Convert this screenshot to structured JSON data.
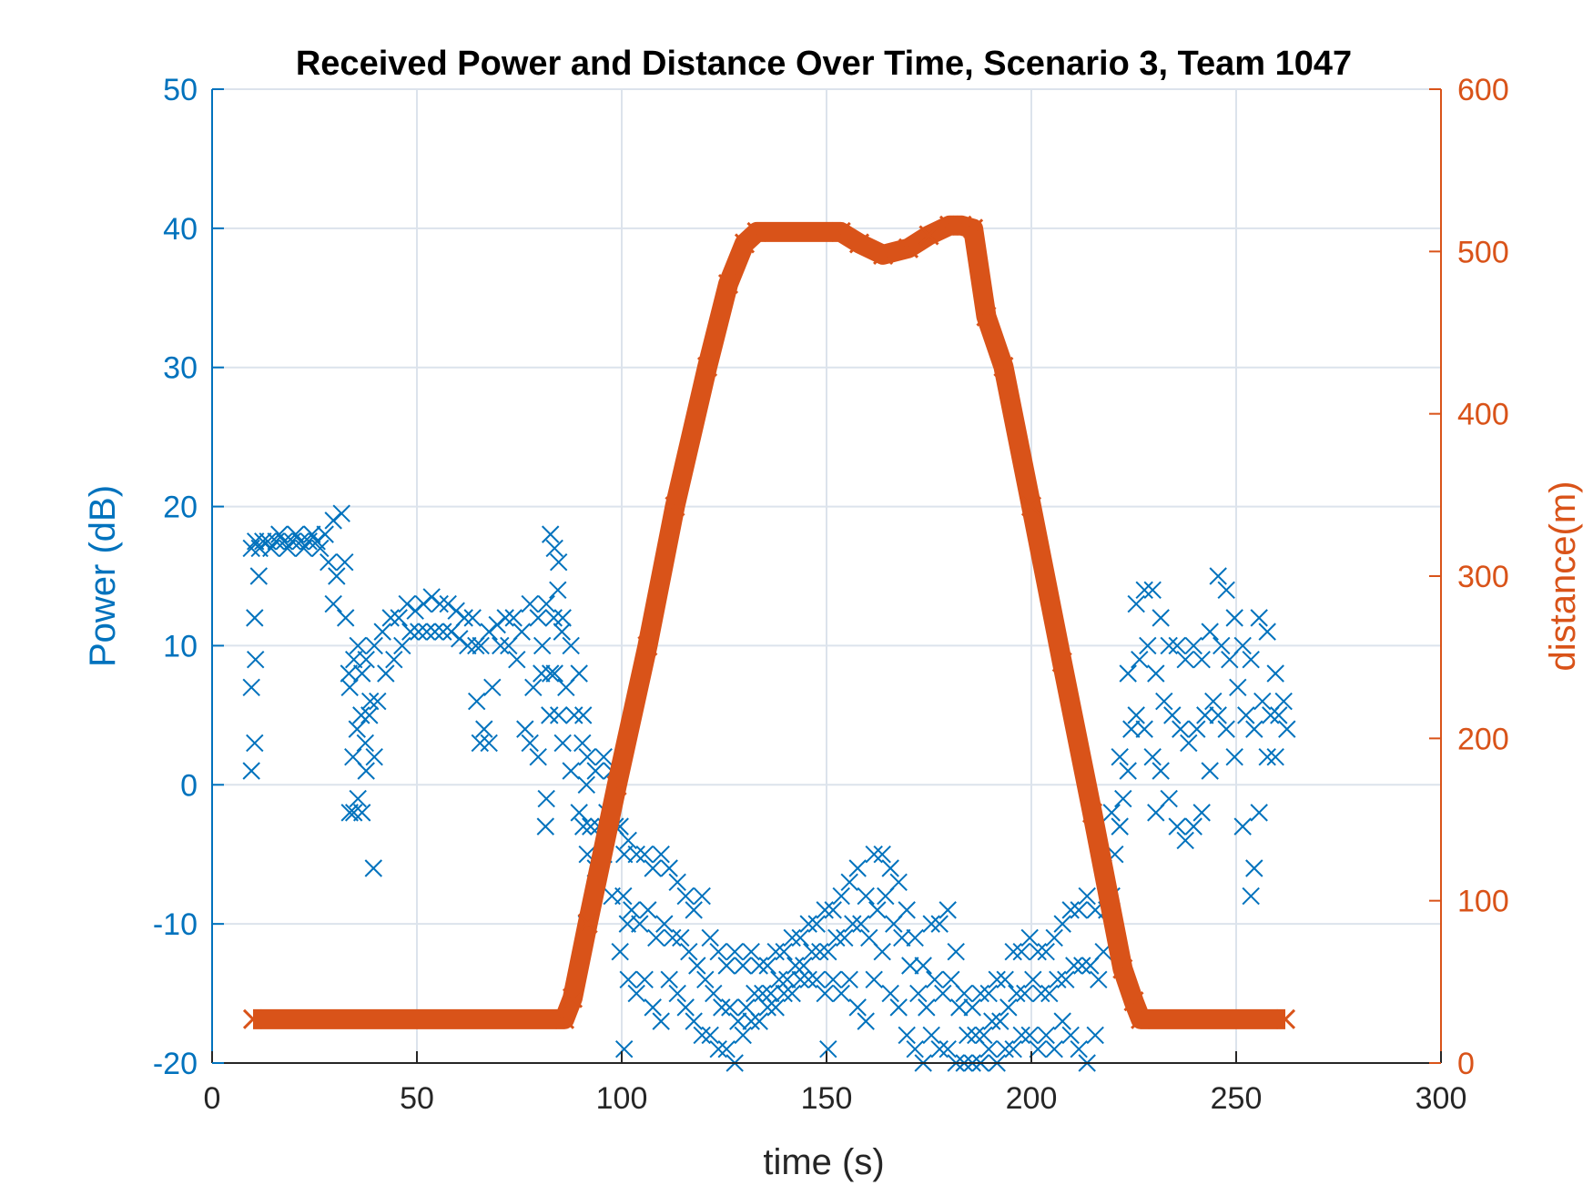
{
  "chart_data": {
    "type": "scatter",
    "title": "Received Power and Distance Over Time, Scenario 3, Team 1047",
    "xlabel": "time (s)",
    "ylabel_left": "Power (dB)",
    "ylabel_right": "distance(m)",
    "xlim": [
      0,
      300
    ],
    "ylim_left": [
      -20,
      50
    ],
    "ylim_right": [
      0,
      600
    ],
    "xticks": [
      "0",
      "50",
      "100",
      "150",
      "200",
      "250",
      "300"
    ],
    "yticks_left": [
      "-20",
      "-10",
      "0",
      "10",
      "20",
      "30",
      "40",
      "50"
    ],
    "yticks_right": [
      "0",
      "100",
      "200",
      "300",
      "400",
      "500",
      "600"
    ],
    "grid": true,
    "marker": "x",
    "colors": {
      "power": "#0072BD",
      "distance": "#D95319",
      "axis": "#262626",
      "grid": "#DCE3EC"
    },
    "series": [
      {
        "axis": "left",
        "points_by_time": [
          [
            10,
            1,
            3,
            7,
            12,
            17
          ],
          [
            11,
            9,
            15,
            17.5
          ],
          [
            12,
            17,
            17.5
          ],
          [
            14,
            17.5,
            17
          ],
          [
            16,
            17.5,
            18
          ],
          [
            18,
            17.5,
            17
          ],
          [
            20,
            17.5,
            18
          ],
          [
            22,
            17.5,
            17
          ],
          [
            24,
            17.5,
            18
          ],
          [
            26,
            17.5,
            17
          ],
          [
            28,
            18,
            16
          ],
          [
            30,
            19,
            15,
            13
          ],
          [
            32,
            19.5,
            16
          ],
          [
            33,
            12,
            8
          ],
          [
            34,
            7,
            2,
            -2
          ],
          [
            35,
            9,
            4,
            -2
          ],
          [
            36,
            10,
            5,
            -1
          ],
          [
            37,
            8,
            3,
            -2
          ],
          [
            38,
            9,
            5,
            1
          ],
          [
            39,
            6,
            -6
          ],
          [
            40,
            10,
            6,
            2
          ],
          [
            42,
            11,
            8
          ],
          [
            44,
            12,
            9
          ],
          [
            46,
            12,
            10
          ],
          [
            48,
            13,
            11
          ],
          [
            50,
            12.5,
            11
          ],
          [
            52,
            13,
            11
          ],
          [
            54,
            13.5,
            11
          ],
          [
            56,
            13,
            11
          ],
          [
            58,
            13,
            11
          ],
          [
            60,
            12.5,
            10.5
          ],
          [
            62,
            12,
            10
          ],
          [
            64,
            12,
            10
          ],
          [
            65,
            6,
            3
          ],
          [
            66,
            10,
            4
          ],
          [
            68,
            11,
            7,
            3
          ],
          [
            70,
            11.5,
            10
          ],
          [
            72,
            12,
            10
          ],
          [
            74,
            12,
            9
          ],
          [
            76,
            11,
            4
          ],
          [
            78,
            13,
            7,
            3
          ],
          [
            80,
            12,
            8,
            2
          ],
          [
            81,
            10,
            -3
          ],
          [
            82,
            13,
            5,
            -1
          ],
          [
            83,
            18,
            12,
            8
          ],
          [
            84,
            17,
            14,
            8
          ],
          [
            85,
            16,
            11,
            5
          ],
          [
            86,
            12,
            7,
            3
          ],
          [
            88,
            10,
            5,
            1
          ],
          [
            90,
            8,
            3,
            -2
          ],
          [
            91,
            5,
            0,
            -3,
            -10
          ],
          [
            92,
            2,
            -3,
            -5
          ],
          [
            94,
            1,
            -3,
            -6
          ],
          [
            96,
            2,
            -2,
            -5
          ],
          [
            98,
            1,
            -3,
            -8
          ],
          [
            100,
            -3,
            -8,
            -12
          ],
          [
            101,
            -5,
            -10,
            -19
          ],
          [
            102,
            -4,
            -9,
            -14
          ],
          [
            104,
            -5,
            -10,
            -15
          ],
          [
            106,
            -5,
            -9,
            -14
          ],
          [
            108,
            -6,
            -11,
            -16
          ],
          [
            110,
            -5,
            -10,
            -17
          ],
          [
            112,
            -6,
            -11,
            -14
          ],
          [
            114,
            -7,
            -11,
            -15
          ],
          [
            116,
            -8,
            -12,
            -16
          ],
          [
            118,
            -9,
            -13,
            -17
          ],
          [
            120,
            -8,
            -14,
            -18
          ],
          [
            122,
            -11,
            -15,
            -18
          ],
          [
            124,
            -12,
            -16,
            -19
          ],
          [
            126,
            -13,
            -16,
            -19
          ],
          [
            128,
            -12,
            -17,
            -20
          ],
          [
            130,
            -13,
            -16,
            -18
          ],
          [
            132,
            -12,
            -15,
            -17
          ],
          [
            134,
            -13,
            -15,
            -17
          ],
          [
            136,
            -13,
            -15,
            -16
          ],
          [
            138,
            -12,
            -14,
            -16
          ],
          [
            140,
            -12,
            -14,
            -15
          ],
          [
            142,
            -11,
            -13,
            -15
          ],
          [
            144,
            -11,
            -13,
            -14
          ],
          [
            146,
            -10,
            -12,
            -14
          ],
          [
            148,
            -10,
            -12,
            -14
          ],
          [
            150,
            -9,
            -12,
            -15,
            -19
          ],
          [
            152,
            -9,
            -11,
            -14
          ],
          [
            154,
            -8,
            -11,
            -15
          ],
          [
            156,
            -7,
            -10,
            -14
          ],
          [
            158,
            -6,
            -10,
            -16
          ],
          [
            160,
            -8,
            -11,
            -17
          ],
          [
            162,
            -5,
            -9,
            -14
          ],
          [
            164,
            -5,
            -8,
            -12
          ],
          [
            166,
            -6,
            -10,
            -15
          ],
          [
            168,
            -7,
            -11,
            -16
          ],
          [
            170,
            -9,
            -13,
            -18
          ],
          [
            172,
            -11,
            -15,
            -19
          ],
          [
            174,
            -13,
            -16,
            -20
          ],
          [
            176,
            -10,
            -14,
            -18
          ],
          [
            178,
            -10,
            -15,
            -19
          ],
          [
            180,
            -9,
            -14,
            -19
          ],
          [
            182,
            -12,
            -16,
            -20
          ],
          [
            184,
            -15,
            -18,
            -20
          ],
          [
            186,
            -16,
            -18,
            -20
          ],
          [
            188,
            -15,
            -18,
            -20
          ],
          [
            190,
            -15,
            -17,
            -19
          ],
          [
            192,
            -14,
            -17,
            -20
          ],
          [
            194,
            -14,
            -16,
            -19
          ],
          [
            196,
            -12,
            -15,
            -19
          ],
          [
            198,
            -12,
            -15,
            -18
          ],
          [
            200,
            -11,
            -14,
            -18
          ],
          [
            202,
            -12,
            -15,
            -19
          ],
          [
            204,
            -12,
            -15,
            -18
          ],
          [
            206,
            -11,
            -14,
            -19
          ],
          [
            208,
            -10,
            -14,
            -17
          ],
          [
            210,
            -9,
            -13,
            -18
          ],
          [
            212,
            -9,
            -13,
            -19
          ],
          [
            214,
            -8,
            -13,
            -20
          ],
          [
            216,
            -9,
            -14,
            -18
          ],
          [
            218,
            -6,
            -9,
            -12
          ],
          [
            220,
            -2,
            -5,
            -8
          ],
          [
            222,
            2,
            -1,
            -3
          ],
          [
            224,
            8,
            4,
            1
          ],
          [
            226,
            13,
            9,
            5
          ],
          [
            228,
            14,
            10,
            4
          ],
          [
            230,
            14,
            8,
            2,
            -2
          ],
          [
            232,
            12,
            6,
            1
          ],
          [
            234,
            10,
            5,
            -1
          ],
          [
            236,
            10,
            4,
            -3
          ],
          [
            238,
            9,
            3,
            -4
          ],
          [
            240,
            10,
            4,
            -3
          ],
          [
            242,
            9,
            5,
            -2
          ],
          [
            244,
            11,
            6,
            1
          ],
          [
            246,
            15,
            10,
            5
          ],
          [
            248,
            14,
            9,
            4
          ],
          [
            250,
            12,
            7,
            2
          ],
          [
            252,
            10,
            5,
            -3
          ],
          [
            254,
            9,
            4,
            -8,
            -6
          ],
          [
            256,
            12,
            6,
            -2
          ],
          [
            258,
            11,
            5,
            2
          ],
          [
            260,
            8,
            5,
            2
          ],
          [
            262,
            6,
            4
          ]
        ]
      },
      {
        "axis": "right",
        "points": [
          [
            10,
            27
          ],
          [
            86,
            27
          ],
          [
            88,
            40
          ],
          [
            91.7,
            86
          ],
          [
            98.8,
            171
          ],
          [
            106.3,
            257
          ],
          [
            113,
            343
          ],
          [
            120.9,
            429
          ],
          [
            126,
            480
          ],
          [
            130,
            505
          ],
          [
            133,
            512
          ],
          [
            153.5,
            512
          ],
          [
            158,
            505
          ],
          [
            163.8,
            498
          ],
          [
            170,
            502
          ],
          [
            175,
            510
          ],
          [
            180,
            516
          ],
          [
            183,
            516
          ],
          [
            185.8,
            514
          ],
          [
            189,
            460
          ],
          [
            193.2,
            429
          ],
          [
            200,
            343
          ],
          [
            207.5,
            247
          ],
          [
            214.9,
            154
          ],
          [
            222.3,
            58
          ],
          [
            225,
            38
          ],
          [
            226.7,
            27
          ],
          [
            262,
            27
          ]
        ]
      }
    ]
  }
}
